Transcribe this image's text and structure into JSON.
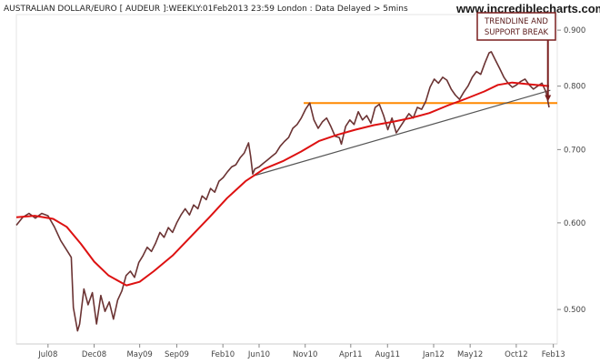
{
  "chart_data": {
    "type": "line",
    "title": "AUSTRALIAN DOLLAR/EURO [ AUDEUR ]:WEEKLY:01Feb2013 23:59 London : Data Delayed > 5mins",
    "brand": "www.incrediblecharts.com",
    "y_scale": "log",
    "ylim": [
      0.465,
      0.93
    ],
    "xlim": [
      "2008-04-01",
      "2013-02-28"
    ],
    "y_ticks": [
      {
        "value": 0.5,
        "label": "0.500"
      },
      {
        "value": 0.6,
        "label": "0.600"
      },
      {
        "value": 0.7,
        "label": "0.700"
      },
      {
        "value": 0.8,
        "label": "0.800"
      },
      {
        "value": 0.9,
        "label": "0.900"
      }
    ],
    "x_ticks": [
      {
        "date": "2008-07-15",
        "label": "Jul08"
      },
      {
        "date": "2008-12-15",
        "label": "Dec08"
      },
      {
        "date": "2009-05-15",
        "label": "May09"
      },
      {
        "date": "2009-09-15",
        "label": "Sep09"
      },
      {
        "date": "2010-02-15",
        "label": "Feb10"
      },
      {
        "date": "2010-06-15",
        "label": "Jun10"
      },
      {
        "date": "2010-11-15",
        "label": "Nov10"
      },
      {
        "date": "2011-04-15",
        "label": "Apr11"
      },
      {
        "date": "2011-08-15",
        "label": "Aug11"
      },
      {
        "date": "2012-01-15",
        "label": "Jan12"
      },
      {
        "date": "2012-05-15",
        "label": "May12"
      },
      {
        "date": "2012-10-15",
        "label": "Oct12"
      },
      {
        "date": "2013-02-15",
        "label": "Feb13"
      }
    ],
    "grid": false,
    "series": [
      {
        "name": "AUDEUR",
        "color": "#6b3333",
        "points": [
          [
            "2008-04-01",
            0.597
          ],
          [
            "2008-04-22",
            0.607
          ],
          [
            "2008-05-13",
            0.612
          ],
          [
            "2008-06-03",
            0.606
          ],
          [
            "2008-06-24",
            0.612
          ],
          [
            "2008-07-15",
            0.609
          ],
          [
            "2008-08-05",
            0.595
          ],
          [
            "2008-08-26",
            0.578
          ],
          [
            "2008-09-16",
            0.566
          ],
          [
            "2008-09-30",
            0.558
          ],
          [
            "2008-10-07",
            0.502
          ],
          [
            "2008-10-21",
            0.478
          ],
          [
            "2008-10-28",
            0.485
          ],
          [
            "2008-11-11",
            0.522
          ],
          [
            "2008-11-25",
            0.505
          ],
          [
            "2008-12-09",
            0.518
          ],
          [
            "2008-12-23",
            0.485
          ],
          [
            "2009-01-06",
            0.515
          ],
          [
            "2009-01-20",
            0.498
          ],
          [
            "2009-02-03",
            0.508
          ],
          [
            "2009-02-17",
            0.49
          ],
          [
            "2009-03-03",
            0.51
          ],
          [
            "2009-03-17",
            0.52
          ],
          [
            "2009-03-31",
            0.537
          ],
          [
            "2009-04-14",
            0.542
          ],
          [
            "2009-04-28",
            0.535
          ],
          [
            "2009-05-12",
            0.552
          ],
          [
            "2009-05-26",
            0.56
          ],
          [
            "2009-06-09",
            0.57
          ],
          [
            "2009-06-23",
            0.565
          ],
          [
            "2009-07-07",
            0.575
          ],
          [
            "2009-07-21",
            0.588
          ],
          [
            "2009-08-04",
            0.582
          ],
          [
            "2009-08-18",
            0.594
          ],
          [
            "2009-09-01",
            0.588
          ],
          [
            "2009-09-15",
            0.6
          ],
          [
            "2009-09-29",
            0.61
          ],
          [
            "2009-10-13",
            0.618
          ],
          [
            "2009-10-27",
            0.61
          ],
          [
            "2009-11-10",
            0.623
          ],
          [
            "2009-11-24",
            0.618
          ],
          [
            "2009-12-08",
            0.635
          ],
          [
            "2009-12-22",
            0.63
          ],
          [
            "2010-01-05",
            0.645
          ],
          [
            "2010-01-19",
            0.64
          ],
          [
            "2010-02-02",
            0.655
          ],
          [
            "2010-02-16",
            0.66
          ],
          [
            "2010-03-02",
            0.668
          ],
          [
            "2010-03-16",
            0.675
          ],
          [
            "2010-03-30",
            0.678
          ],
          [
            "2010-04-13",
            0.688
          ],
          [
            "2010-04-27",
            0.695
          ],
          [
            "2010-05-11",
            0.71
          ],
          [
            "2010-05-18",
            0.69
          ],
          [
            "2010-05-25",
            0.665
          ],
          [
            "2010-06-01",
            0.672
          ],
          [
            "2010-06-15",
            0.675
          ],
          [
            "2010-06-29",
            0.68
          ],
          [
            "2010-07-13",
            0.685
          ],
          [
            "2010-07-27",
            0.69
          ],
          [
            "2010-08-10",
            0.695
          ],
          [
            "2010-08-24",
            0.705
          ],
          [
            "2010-09-07",
            0.712
          ],
          [
            "2010-09-21",
            0.718
          ],
          [
            "2010-10-05",
            0.732
          ],
          [
            "2010-10-19",
            0.738
          ],
          [
            "2010-11-02",
            0.748
          ],
          [
            "2010-11-16",
            0.762
          ],
          [
            "2010-11-30",
            0.772
          ],
          [
            "2010-12-14",
            0.745
          ],
          [
            "2010-12-28",
            0.732
          ],
          [
            "2011-01-11",
            0.742
          ],
          [
            "2011-01-25",
            0.748
          ],
          [
            "2011-02-08",
            0.735
          ],
          [
            "2011-02-22",
            0.72
          ],
          [
            "2011-03-08",
            0.718
          ],
          [
            "2011-03-15",
            0.708
          ],
          [
            "2011-03-29",
            0.735
          ],
          [
            "2011-04-12",
            0.745
          ],
          [
            "2011-04-26",
            0.738
          ],
          [
            "2011-05-10",
            0.758
          ],
          [
            "2011-05-24",
            0.745
          ],
          [
            "2011-06-07",
            0.752
          ],
          [
            "2011-06-21",
            0.74
          ],
          [
            "2011-07-05",
            0.765
          ],
          [
            "2011-07-19",
            0.77
          ],
          [
            "2011-08-02",
            0.752
          ],
          [
            "2011-08-16",
            0.73
          ],
          [
            "2011-08-30",
            0.748
          ],
          [
            "2011-09-13",
            0.725
          ],
          [
            "2011-09-27",
            0.735
          ],
          [
            "2011-10-11",
            0.745
          ],
          [
            "2011-10-25",
            0.755
          ],
          [
            "2011-11-08",
            0.748
          ],
          [
            "2011-11-22",
            0.765
          ],
          [
            "2011-12-06",
            0.762
          ],
          [
            "2011-12-20",
            0.775
          ],
          [
            "2012-01-03",
            0.798
          ],
          [
            "2012-01-17",
            0.812
          ],
          [
            "2012-01-31",
            0.805
          ],
          [
            "2012-02-14",
            0.815
          ],
          [
            "2012-02-28",
            0.81
          ],
          [
            "2012-03-13",
            0.795
          ],
          [
            "2012-03-27",
            0.785
          ],
          [
            "2012-04-10",
            0.778
          ],
          [
            "2012-04-24",
            0.79
          ],
          [
            "2012-05-08",
            0.8
          ],
          [
            "2012-05-22",
            0.815
          ],
          [
            "2012-06-05",
            0.825
          ],
          [
            "2012-06-19",
            0.82
          ],
          [
            "2012-07-03",
            0.84
          ],
          [
            "2012-07-17",
            0.858
          ],
          [
            "2012-07-24",
            0.86
          ],
          [
            "2012-08-07",
            0.845
          ],
          [
            "2012-08-21",
            0.83
          ],
          [
            "2012-09-04",
            0.815
          ],
          [
            "2012-09-18",
            0.805
          ],
          [
            "2012-10-02",
            0.798
          ],
          [
            "2012-10-16",
            0.802
          ],
          [
            "2012-10-30",
            0.808
          ],
          [
            "2012-11-13",
            0.812
          ],
          [
            "2012-11-27",
            0.802
          ],
          [
            "2012-12-11",
            0.795
          ],
          [
            "2012-12-25",
            0.8
          ],
          [
            "2013-01-08",
            0.805
          ],
          [
            "2013-01-22",
            0.79
          ],
          [
            "2013-02-01",
            0.765
          ]
        ]
      },
      {
        "name": "MA",
        "color": "#dd1111",
        "points": [
          [
            "2008-04-01",
            0.607
          ],
          [
            "2008-06-01",
            0.609
          ],
          [
            "2008-08-01",
            0.605
          ],
          [
            "2008-09-15",
            0.595
          ],
          [
            "2008-11-01",
            0.574
          ],
          [
            "2008-12-15",
            0.553
          ],
          [
            "2009-02-01",
            0.537
          ],
          [
            "2009-04-01",
            0.526
          ],
          [
            "2009-05-15",
            0.53
          ],
          [
            "2009-07-01",
            0.542
          ],
          [
            "2009-09-01",
            0.56
          ],
          [
            "2009-11-01",
            0.583
          ],
          [
            "2010-01-01",
            0.607
          ],
          [
            "2010-03-01",
            0.632
          ],
          [
            "2010-05-01",
            0.655
          ],
          [
            "2010-07-01",
            0.672
          ],
          [
            "2010-09-01",
            0.683
          ],
          [
            "2010-11-01",
            0.697
          ],
          [
            "2011-01-01",
            0.713
          ],
          [
            "2011-03-01",
            0.722
          ],
          [
            "2011-05-01",
            0.73
          ],
          [
            "2011-07-01",
            0.737
          ],
          [
            "2011-09-01",
            0.742
          ],
          [
            "2011-11-01",
            0.748
          ],
          [
            "2012-01-01",
            0.756
          ],
          [
            "2012-03-01",
            0.768
          ],
          [
            "2012-05-01",
            0.779
          ],
          [
            "2012-07-01",
            0.791
          ],
          [
            "2012-08-15",
            0.802
          ],
          [
            "2012-10-01",
            0.806
          ],
          [
            "2012-12-01",
            0.803
          ],
          [
            "2013-02-01",
            0.8
          ]
        ]
      }
    ],
    "support_line": {
      "color": "#ff8800",
      "value": 0.772,
      "from": "2010-11-10",
      "to": "2013-02-28"
    },
    "trendline": {
      "color": "#555555",
      "from": [
        "2010-06-01",
        0.663
      ],
      "to": [
        "2013-02-05",
        0.793
      ]
    },
    "annotation": {
      "lines": [
        "TRENDLINE AND",
        "SUPPORT BREAK"
      ],
      "border_color": "#7a1f1f",
      "arrow_to": [
        "2013-01-28",
        0.776
      ]
    }
  }
}
